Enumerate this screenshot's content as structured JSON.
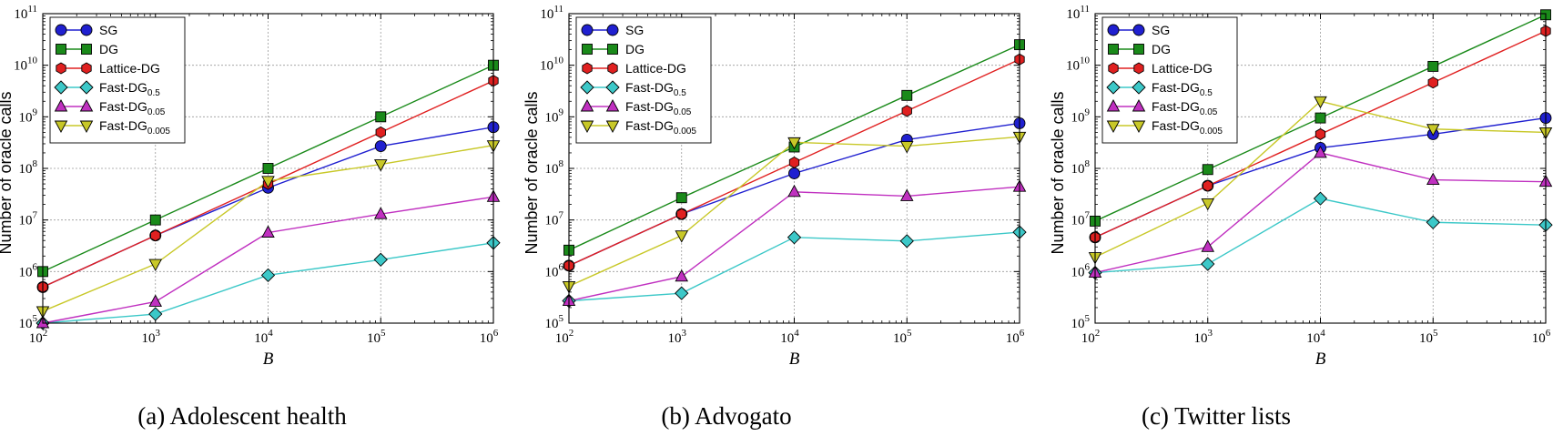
{
  "chart_data": [
    {
      "type": "line",
      "caption": "(a) Adolescent health",
      "xlabel": "B",
      "ylabel": "Number of oracle calls",
      "xscale": "log",
      "yscale": "log",
      "xlim": [
        100,
        1000000
      ],
      "ylim": [
        100000,
        100000000000
      ],
      "x_ticks": [
        {
          "base": "10",
          "exp": "2"
        },
        {
          "base": "10",
          "exp": "3"
        },
        {
          "base": "10",
          "exp": "4"
        },
        {
          "base": "10",
          "exp": "5"
        },
        {
          "base": "10",
          "exp": "6"
        }
      ],
      "y_ticks": [
        {
          "base": "10",
          "exp": "5"
        },
        {
          "base": "10",
          "exp": "6"
        },
        {
          "base": "10",
          "exp": "7"
        },
        {
          "base": "10",
          "exp": "8"
        },
        {
          "base": "10",
          "exp": "9"
        },
        {
          "base": "10",
          "exp": "10"
        },
        {
          "base": "10",
          "exp": "11"
        }
      ],
      "grid": true,
      "legend_position": "top-left",
      "x": [
        100,
        1000,
        10000,
        100000,
        1000000
      ],
      "series": [
        {
          "name": "SG",
          "label_main": "SG",
          "label_sub": "",
          "color": "#2020d0",
          "marker": "circle",
          "values": [
            500000,
            5000000,
            42000000,
            270000000,
            630000000
          ]
        },
        {
          "name": "DG",
          "label_main": "DG",
          "label_sub": "",
          "color": "#1a8a1a",
          "marker": "square",
          "values": [
            1000000,
            10000000,
            100000000,
            1000000000,
            10000000000
          ]
        },
        {
          "name": "Lattice-DG",
          "label_main": "Lattice-DG",
          "label_sub": "",
          "color": "#e02020",
          "marker": "hexagon",
          "values": [
            500000,
            5000000,
            50000000,
            500000000,
            5000000000
          ]
        },
        {
          "name": "Fast-DG0.5",
          "label_main": "Fast-DG",
          "label_sub": "0.5",
          "color": "#3cc8c8",
          "marker": "diamond",
          "values": [
            100000,
            150000,
            850000,
            1700000,
            3600000
          ]
        },
        {
          "name": "Fast-DG0.05",
          "label_main": "Fast-DG",
          "label_sub": "0.05",
          "color": "#c030c0",
          "marker": "triangle-up",
          "values": [
            100000,
            260000,
            5700000,
            13000000,
            28000000
          ]
        },
        {
          "name": "Fast-DG0.005",
          "label_main": "Fast-DG",
          "label_sub": "0.005",
          "color": "#c8c828",
          "marker": "triangle-down",
          "values": [
            170000,
            1400000,
            57000000,
            120000000,
            280000000
          ]
        }
      ]
    },
    {
      "type": "line",
      "caption": "(b) Advogato",
      "xlabel": "B",
      "ylabel": "Number of oracle calls",
      "xscale": "log",
      "yscale": "log",
      "xlim": [
        100,
        1000000
      ],
      "ylim": [
        100000,
        100000000000
      ],
      "x_ticks": [
        {
          "base": "10",
          "exp": "2"
        },
        {
          "base": "10",
          "exp": "3"
        },
        {
          "base": "10",
          "exp": "4"
        },
        {
          "base": "10",
          "exp": "5"
        },
        {
          "base": "10",
          "exp": "6"
        }
      ],
      "y_ticks": [
        {
          "base": "10",
          "exp": "5"
        },
        {
          "base": "10",
          "exp": "6"
        },
        {
          "base": "10",
          "exp": "7"
        },
        {
          "base": "10",
          "exp": "8"
        },
        {
          "base": "10",
          "exp": "9"
        },
        {
          "base": "10",
          "exp": "10"
        },
        {
          "base": "10",
          "exp": "11"
        }
      ],
      "grid": true,
      "legend_position": "top-left",
      "x": [
        100,
        1000,
        10000,
        100000,
        1000000
      ],
      "series": [
        {
          "name": "SG",
          "label_main": "SG",
          "label_sub": "",
          "color": "#2020d0",
          "marker": "circle",
          "values": [
            1300000,
            13000000,
            80000000,
            360000000,
            750000000
          ]
        },
        {
          "name": "DG",
          "label_main": "DG",
          "label_sub": "",
          "color": "#1a8a1a",
          "marker": "square",
          "values": [
            2600000,
            27000000,
            260000000,
            2600000000,
            25000000000
          ]
        },
        {
          "name": "Lattice-DG",
          "label_main": "Lattice-DG",
          "label_sub": "",
          "color": "#e02020",
          "marker": "hexagon",
          "values": [
            1300000,
            13000000,
            130000000,
            1300000000,
            13000000000
          ]
        },
        {
          "name": "Fast-DG0.5",
          "label_main": "Fast-DG",
          "label_sub": "0.5",
          "color": "#3cc8c8",
          "marker": "diamond",
          "values": [
            270000,
            380000,
            4600000,
            3900000,
            5800000
          ]
        },
        {
          "name": "Fast-DG0.05",
          "label_main": "Fast-DG",
          "label_sub": "0.05",
          "color": "#c030c0",
          "marker": "triangle-up",
          "values": [
            270000,
            800000,
            35000000,
            29000000,
            44000000
          ]
        },
        {
          "name": "Fast-DG0.005",
          "label_main": "Fast-DG",
          "label_sub": "0.005",
          "color": "#c8c828",
          "marker": "triangle-down",
          "values": [
            520000,
            5000000,
            320000000,
            270000000,
            410000000
          ]
        }
      ]
    },
    {
      "type": "line",
      "caption": "(c) Twitter lists",
      "xlabel": "B",
      "ylabel": "Number of oracle calls",
      "xscale": "log",
      "yscale": "log",
      "xlim": [
        100,
        1000000
      ],
      "ylim": [
        100000,
        100000000000
      ],
      "x_ticks": [
        {
          "base": "10",
          "exp": "2"
        },
        {
          "base": "10",
          "exp": "3"
        },
        {
          "base": "10",
          "exp": "4"
        },
        {
          "base": "10",
          "exp": "5"
        },
        {
          "base": "10",
          "exp": "6"
        }
      ],
      "y_ticks": [
        {
          "base": "10",
          "exp": "5"
        },
        {
          "base": "10",
          "exp": "6"
        },
        {
          "base": "10",
          "exp": "7"
        },
        {
          "base": "10",
          "exp": "8"
        },
        {
          "base": "10",
          "exp": "9"
        },
        {
          "base": "10",
          "exp": "10"
        },
        {
          "base": "10",
          "exp": "11"
        }
      ],
      "grid": true,
      "legend_position": "top-left",
      "x": [
        100,
        1000,
        10000,
        100000,
        1000000
      ],
      "series": [
        {
          "name": "SG",
          "label_main": "SG",
          "label_sub": "",
          "color": "#2020d0",
          "marker": "circle",
          "values": [
            4600000,
            46000000,
            250000000,
            460000000,
            950000000
          ]
        },
        {
          "name": "DG",
          "label_main": "DG",
          "label_sub": "",
          "color": "#1a8a1a",
          "marker": "square",
          "values": [
            9500000,
            95000000,
            950000000,
            9500000000,
            95000000000
          ]
        },
        {
          "name": "Lattice-DG",
          "label_main": "Lattice-DG",
          "label_sub": "",
          "color": "#e02020",
          "marker": "hexagon",
          "values": [
            4600000,
            46000000,
            460000000,
            4600000000,
            46000000000
          ]
        },
        {
          "name": "Fast-DG0.5",
          "label_main": "Fast-DG",
          "label_sub": "0.5",
          "color": "#3cc8c8",
          "marker": "diamond",
          "values": [
            950000,
            1400000,
            26000000,
            9000000,
            8000000
          ]
        },
        {
          "name": "Fast-DG0.05",
          "label_main": "Fast-DG",
          "label_sub": "0.05",
          "color": "#c030c0",
          "marker": "triangle-up",
          "values": [
            950000,
            3000000,
            200000000,
            60000000,
            55000000
          ]
        },
        {
          "name": "Fast-DG0.005",
          "label_main": "Fast-DG",
          "label_sub": "0.005",
          "color": "#c8c828",
          "marker": "triangle-down",
          "values": [
            1900000,
            21000000,
            2000000000,
            580000000,
            500000000
          ]
        }
      ]
    }
  ]
}
